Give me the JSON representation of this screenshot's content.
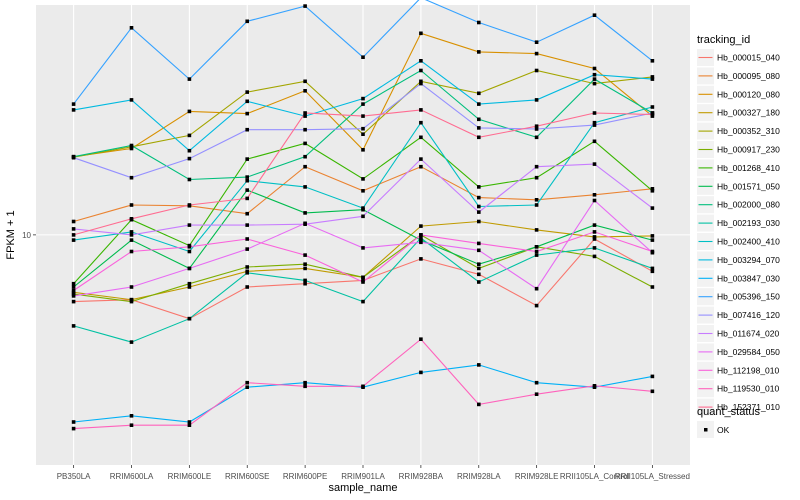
{
  "chart_data": {
    "type": "line",
    "title": "",
    "xlabel": "sample_name",
    "ylabel": "FPKM + 1",
    "y_scale": "log10",
    "ylim": [
      1.05,
      95
    ],
    "y_ticks": [
      {
        "value": 10,
        "label": "10"
      }
    ],
    "grid": true,
    "legend_placement": "right",
    "categories": [
      "PB350LA",
      "RRIM600LA",
      "RRIM600LE",
      "RRIM600SE",
      "RRIM600PE",
      "RRIM901LA",
      "RRIM928BA",
      "RRIM928LA",
      "RRIM928LE",
      "RRII105LA_Control",
      "RRII105LA_Stressed"
    ],
    "color_legend_title": "tracking_id",
    "shape_legend_title": "quant_status",
    "shape_legend_entries": [
      "OK"
    ],
    "series": [
      {
        "name": "Hb_000015_040",
        "color": "#F8766D",
        "values": [
          5.2,
          5.3,
          4.4,
          6.0,
          6.2,
          6.4,
          7.9,
          6.8,
          5.0,
          9.6,
          7.0
        ]
      },
      {
        "name": "Hb_000095_080",
        "color": "#EA8331",
        "values": [
          11.4,
          13.4,
          13.3,
          12.3,
          19.5,
          15.4,
          19.5,
          14.4,
          14.1,
          14.8,
          15.7
        ]
      },
      {
        "name": "Hb_000120_080",
        "color": "#D89000",
        "values": [
          21.5,
          23.3,
          33.5,
          32.8,
          41.0,
          23.0,
          72.0,
          60.0,
          59.0,
          51.0,
          32.0
        ]
      },
      {
        "name": "Hb_000327_180",
        "color": "#C09B00",
        "values": [
          5.7,
          5.3,
          6.0,
          7.0,
          7.2,
          6.6,
          10.9,
          11.4,
          10.5,
          9.8,
          9.9
        ]
      },
      {
        "name": "Hb_000352_310",
        "color": "#A3A500",
        "values": [
          21.4,
          23.7,
          26.5,
          40.5,
          45.0,
          26.8,
          45.0,
          40.0,
          50.0,
          44.0,
          47.0
        ]
      },
      {
        "name": "Hb_000917_230",
        "color": "#7CAE00",
        "values": [
          5.6,
          5.2,
          6.2,
          7.3,
          7.5,
          6.6,
          10.0,
          7.2,
          8.9,
          8.1,
          6.0
        ]
      },
      {
        "name": "Hb_001268_410",
        "color": "#39B600",
        "values": [
          6.2,
          11.6,
          9.0,
          21.0,
          24.5,
          17.3,
          26.0,
          16.0,
          17.5,
          25.0,
          15.4
        ]
      },
      {
        "name": "Hb_001571_050",
        "color": "#00BB4E",
        "values": [
          6.0,
          9.5,
          7.2,
          15.5,
          12.4,
          12.8,
          9.5,
          7.5,
          8.9,
          11.0,
          9.5
        ]
      },
      {
        "name": "Hb_002000_080",
        "color": "#00BF7D",
        "values": [
          21.5,
          24.0,
          17.2,
          17.6,
          21.5,
          36.0,
          50.0,
          31.0,
          26.0,
          46.0,
          33.0
        ]
      },
      {
        "name": "Hb_002193_030",
        "color": "#00C1A3",
        "values": [
          4.1,
          3.5,
          4.4,
          6.9,
          6.4,
          5.2,
          9.7,
          6.3,
          8.2,
          8.8,
          7.2
        ]
      },
      {
        "name": "Hb_002400_410",
        "color": "#00BFC4",
        "values": [
          9.5,
          10.3,
          8.5,
          17.0,
          16.0,
          13.0,
          30.0,
          13.2,
          13.4,
          30.0,
          35.0
        ]
      },
      {
        "name": "Hb_003294_070",
        "color": "#00BAE0",
        "values": [
          34.0,
          37.5,
          22.8,
          37.0,
          32.0,
          38.0,
          55.0,
          36.0,
          37.5,
          48.0,
          46.0
        ]
      },
      {
        "name": "Hb_003847_030",
        "color": "#00B0F6",
        "values": [
          1.6,
          1.7,
          1.6,
          2.25,
          2.35,
          2.25,
          2.6,
          2.8,
          2.35,
          2.25,
          2.5
        ]
      },
      {
        "name": "Hb_005396_150",
        "color": "#35A2FF",
        "values": [
          36.0,
          76.0,
          46.0,
          81.0,
          94.0,
          57.0,
          102.0,
          80.0,
          66.0,
          86.0,
          55.0
        ]
      },
      {
        "name": "Hb_007416_120",
        "color": "#9590FF",
        "values": [
          21.3,
          17.5,
          21.1,
          28.0,
          28.0,
          28.3,
          44.0,
          28.5,
          28.2,
          29.3,
          33.0
        ]
      },
      {
        "name": "Hb_011674_020",
        "color": "#C77CFF",
        "values": [
          10.6,
          10.0,
          11.0,
          11.0,
          11.1,
          12.0,
          21.0,
          12.5,
          19.5,
          20.0,
          13.0
        ]
      },
      {
        "name": "Hb_029584_050",
        "color": "#E76BF3",
        "values": [
          5.5,
          6.0,
          7.2,
          8.7,
          11.2,
          8.8,
          9.3,
          8.6,
          5.9,
          14.0,
          8.4
        ]
      },
      {
        "name": "Hb_112198_010",
        "color": "#FA62DB",
        "values": [
          5.8,
          8.5,
          8.9,
          9.6,
          8.2,
          6.3,
          10.0,
          9.2,
          8.5,
          10.3,
          8.5
        ]
      },
      {
        "name": "Hb_119530_010",
        "color": "#FF62BC",
        "values": [
          1.5,
          1.55,
          1.55,
          2.35,
          2.27,
          2.27,
          3.6,
          1.9,
          2.1,
          2.28,
          2.16
        ]
      },
      {
        "name": "Hb_152371_010",
        "color": "#FF6C91",
        "values": [
          10.0,
          11.7,
          13.4,
          14.3,
          33.0,
          32.0,
          34.0,
          26.0,
          29.0,
          33.0,
          32.5
        ]
      }
    ]
  }
}
